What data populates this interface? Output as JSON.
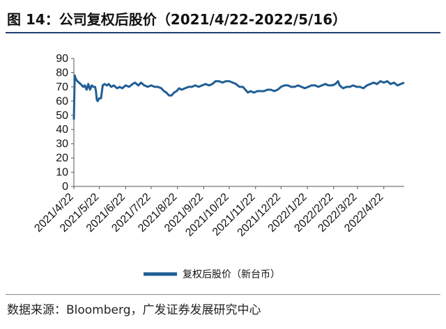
{
  "header": {
    "title": "图 14：公司复权后股价（2021/4/22-2022/5/16）"
  },
  "footer": {
    "source": "数据来源：Bloomberg，广发证券发展研究中心"
  },
  "colors": {
    "series": "#1f5e94",
    "rule": "#1f3b6e",
    "axis": "#555555"
  },
  "chart_data": {
    "type": "line",
    "title": "图 14：公司复权后股价（2021/4/22-2022/5/16）",
    "xlabel": "",
    "ylabel": "",
    "ylim": [
      0,
      90
    ],
    "yticks": [
      0,
      10,
      20,
      30,
      40,
      50,
      60,
      70,
      80,
      90
    ],
    "xlim": [
      "2021-04-22",
      "2022-05-16"
    ],
    "xtick_labels": [
      "2021/4/22",
      "2021/5/22",
      "2021/6/22",
      "2021/7/22",
      "2021/8/22",
      "2021/9/22",
      "2021/10/22",
      "2021/11/22",
      "2021/12/22",
      "2022/1/22",
      "2022/2/22",
      "2022/3/22",
      "2022/4/22"
    ],
    "grid": false,
    "legend_position": "bottom-center",
    "series": [
      {
        "name": "复权后股价（新台币）",
        "color": "#1f5e94",
        "points": [
          [
            "2021-04-22",
            47
          ],
          [
            "2021-04-23",
            78
          ],
          [
            "2021-04-24",
            76
          ],
          [
            "2021-04-26",
            74
          ],
          [
            "2021-04-28",
            73
          ],
          [
            "2021-04-30",
            72
          ],
          [
            "2021-05-03",
            70
          ],
          [
            "2021-05-05",
            71
          ],
          [
            "2021-05-07",
            68
          ],
          [
            "2021-05-09",
            72
          ],
          [
            "2021-05-11",
            68
          ],
          [
            "2021-05-13",
            71
          ],
          [
            "2021-05-15",
            70
          ],
          [
            "2021-05-17",
            70
          ],
          [
            "2021-05-18",
            67
          ],
          [
            "2021-05-19",
            61
          ],
          [
            "2021-05-20",
            60
          ],
          [
            "2021-05-22",
            62
          ],
          [
            "2021-05-24",
            62
          ],
          [
            "2021-05-26",
            71
          ],
          [
            "2021-05-28",
            72
          ],
          [
            "2021-05-31",
            71
          ],
          [
            "2021-06-02",
            72
          ],
          [
            "2021-06-05",
            70
          ],
          [
            "2021-06-08",
            71
          ],
          [
            "2021-06-12",
            69
          ],
          [
            "2021-06-15",
            70
          ],
          [
            "2021-06-18",
            69
          ],
          [
            "2021-06-22",
            71
          ],
          [
            "2021-06-26",
            70
          ],
          [
            "2021-06-30",
            72
          ],
          [
            "2021-07-03",
            73
          ],
          [
            "2021-07-07",
            71
          ],
          [
            "2021-07-10",
            73
          ],
          [
            "2021-07-14",
            71
          ],
          [
            "2021-07-18",
            70
          ],
          [
            "2021-07-22",
            71
          ],
          [
            "2021-07-26",
            70
          ],
          [
            "2021-07-30",
            70
          ],
          [
            "2021-08-03",
            69
          ],
          [
            "2021-08-06",
            67
          ],
          [
            "2021-08-09",
            66
          ],
          [
            "2021-08-12",
            64
          ],
          [
            "2021-08-15",
            64
          ],
          [
            "2021-08-18",
            66
          ],
          [
            "2021-08-21",
            67
          ],
          [
            "2021-08-24",
            69
          ],
          [
            "2021-08-27",
            68
          ],
          [
            "2021-08-31",
            69
          ],
          [
            "2021-09-04",
            70
          ],
          [
            "2021-09-08",
            70
          ],
          [
            "2021-09-12",
            71
          ],
          [
            "2021-09-16",
            70
          ],
          [
            "2021-09-20",
            71
          ],
          [
            "2021-09-24",
            72
          ],
          [
            "2021-09-28",
            71
          ],
          [
            "2021-10-02",
            72
          ],
          [
            "2021-10-06",
            74
          ],
          [
            "2021-10-10",
            74
          ],
          [
            "2021-10-14",
            73
          ],
          [
            "2021-10-18",
            74
          ],
          [
            "2021-10-22",
            74
          ],
          [
            "2021-10-26",
            73
          ],
          [
            "2021-10-30",
            72
          ],
          [
            "2021-11-03",
            70
          ],
          [
            "2021-11-07",
            70
          ],
          [
            "2021-11-10",
            68
          ],
          [
            "2021-11-13",
            66
          ],
          [
            "2021-11-16",
            67
          ],
          [
            "2021-11-20",
            66
          ],
          [
            "2021-11-24",
            67
          ],
          [
            "2021-11-28",
            67
          ],
          [
            "2021-12-02",
            67
          ],
          [
            "2021-12-06",
            68
          ],
          [
            "2021-12-10",
            68
          ],
          [
            "2021-12-14",
            67
          ],
          [
            "2021-12-18",
            68
          ],
          [
            "2021-12-22",
            70
          ],
          [
            "2021-12-26",
            71
          ],
          [
            "2021-12-30",
            71
          ],
          [
            "2022-01-03",
            70
          ],
          [
            "2022-01-07",
            70
          ],
          [
            "2022-01-11",
            71
          ],
          [
            "2022-01-15",
            70
          ],
          [
            "2022-01-19",
            69
          ],
          [
            "2022-01-23",
            70
          ],
          [
            "2022-01-27",
            71
          ],
          [
            "2022-01-31",
            71
          ],
          [
            "2022-02-04",
            70
          ],
          [
            "2022-02-08",
            71
          ],
          [
            "2022-02-12",
            72
          ],
          [
            "2022-02-16",
            71
          ],
          [
            "2022-02-20",
            71
          ],
          [
            "2022-02-24",
            72
          ],
          [
            "2022-02-27",
            74
          ],
          [
            "2022-03-01",
            71
          ],
          [
            "2022-03-05",
            69
          ],
          [
            "2022-03-09",
            70
          ],
          [
            "2022-03-13",
            70
          ],
          [
            "2022-03-17",
            71
          ],
          [
            "2022-03-21",
            70
          ],
          [
            "2022-03-25",
            70
          ],
          [
            "2022-03-29",
            69
          ],
          [
            "2022-04-02",
            71
          ],
          [
            "2022-04-06",
            72
          ],
          [
            "2022-04-10",
            73
          ],
          [
            "2022-04-14",
            72
          ],
          [
            "2022-04-18",
            74
          ],
          [
            "2022-04-22",
            73
          ],
          [
            "2022-04-26",
            74
          ],
          [
            "2022-04-30",
            72
          ],
          [
            "2022-05-04",
            73
          ],
          [
            "2022-05-08",
            71
          ],
          [
            "2022-05-12",
            72
          ],
          [
            "2022-05-16",
            73
          ]
        ]
      }
    ]
  }
}
